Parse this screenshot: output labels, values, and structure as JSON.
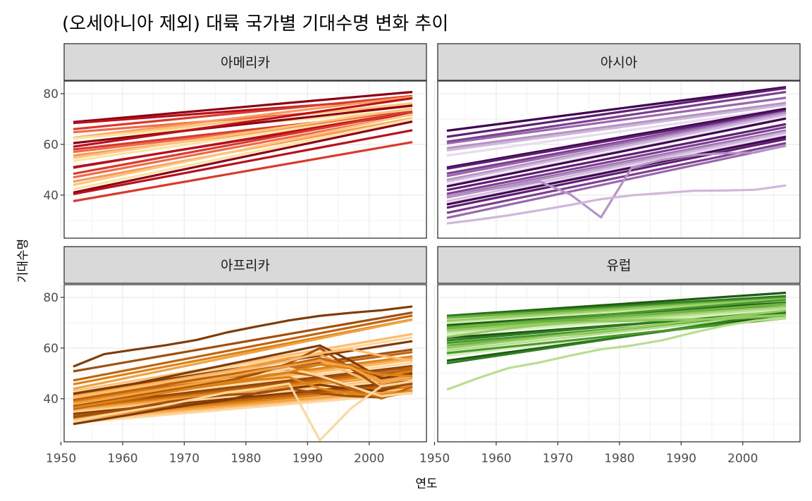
{
  "chart_data": {
    "type": "line",
    "title": "(오세아니아 제외) 대륙 국가별 기대수명 변화 추이",
    "xlabel": "연도",
    "ylabel": "기대수명",
    "xlim": [
      1952,
      2007
    ],
    "ylim": [
      23,
      85
    ],
    "x_ticks": [
      1950,
      1960,
      1970,
      1980,
      1990,
      2000
    ],
    "y_ticks": [
      40,
      60,
      80
    ],
    "x": [
      1952,
      1957,
      1962,
      1967,
      1972,
      1977,
      1982,
      1987,
      1992,
      1997,
      2002,
      2007
    ],
    "grid": true,
    "legend": "none",
    "facets": [
      {
        "name": "아메리카",
        "palette": [
          "#8b0012",
          "#b8111c",
          "#d93a2b",
          "#ef6a4a",
          "#f7995a",
          "#fdc47d",
          "#fee3a0"
        ],
        "series": [
          {
            "start": 68.8,
            "end": 80.7
          },
          {
            "start": 68.4,
            "end": 78.3
          },
          {
            "start": 66.0,
            "end": 79.1
          },
          {
            "start": 64.8,
            "end": 75.6
          },
          {
            "start": 62.6,
            "end": 78.8
          },
          {
            "start": 62.5,
            "end": 76.2
          },
          {
            "start": 62.3,
            "end": 73.6
          },
          {
            "start": 60.5,
            "end": 75.3
          },
          {
            "start": 59.1,
            "end": 78.2
          },
          {
            "start": 58.0,
            "end": 72.9
          },
          {
            "start": 57.0,
            "end": 72.5
          },
          {
            "start": 55.6,
            "end": 72.2
          },
          {
            "start": 54.7,
            "end": 74.2
          },
          {
            "start": 53.5,
            "end": 72.8
          },
          {
            "start": 51.0,
            "end": 72.4
          },
          {
            "start": 50.8,
            "end": 72.9
          },
          {
            "start": 48.4,
            "end": 72.9
          },
          {
            "start": 47.0,
            "end": 71.8
          },
          {
            "start": 45.3,
            "end": 70.3
          },
          {
            "start": 44.0,
            "end": 71.9
          },
          {
            "start": 42.3,
            "end": 70.0
          },
          {
            "start": 41.0,
            "end": 69.0
          },
          {
            "start": 40.4,
            "end": 65.6
          },
          {
            "start": 37.6,
            "end": 60.9
          }
        ]
      },
      {
        "name": "아시아",
        "palette": [
          "#3f0551",
          "#5e1f72",
          "#7c3f8f",
          "#9a67ad",
          "#b693c5",
          "#cfb8da",
          "#e6dcee"
        ],
        "series": [
          {
            "start": 65.4,
            "end": 82.6
          },
          {
            "start": 63.0,
            "end": 82.2
          },
          {
            "start": 61.0,
            "end": 80.7
          },
          {
            "start": 60.4,
            "end": 78.4
          },
          {
            "start": 58.5,
            "end": 76.4
          },
          {
            "start": 57.6,
            "end": 75.6
          },
          {
            "start": 55.6,
            "end": 74.2
          },
          {
            "start": 50.9,
            "end": 74.1
          },
          {
            "start": 50.4,
            "end": 73.4
          },
          {
            "start": 48.5,
            "end": 72.9
          },
          {
            "start": 47.5,
            "end": 72.8
          },
          {
            "start": 46.0,
            "end": 72.4
          },
          {
            "start": 45.3,
            "end": 71.7
          },
          {
            "start": 44.0,
            "end": 70.6
          },
          {
            "start": 43.4,
            "end": 70.2
          },
          {
            "start": 42.0,
            "end": 68.0
          },
          {
            "start": 40.5,
            "end": 66.8
          },
          {
            "start": 39.5,
            "end": 65.5
          },
          {
            "start": 39.0,
            "end": 65.0
          },
          {
            "start": 37.5,
            "end": 64.7
          },
          {
            "start": 37.0,
            "end": 63.8
          },
          {
            "start": 36.3,
            "end": 63.0
          },
          {
            "start": 35.0,
            "end": 62.1
          },
          {
            "start": 33.0,
            "end": 60.5
          },
          {
            "start": 31.0,
            "end": 59.5
          },
          {
            "start": 39.4,
            "end": 59.7,
            "values": [
              39.4,
              41.4,
              43.4,
              45.4,
              40.3,
              31.2,
              50.9,
              53.9,
              55.8,
              56.5,
              56.8,
              59.7
            ]
          },
          {
            "start": 28.8,
            "end": 43.8,
            "values": [
              28.8,
              30.3,
              32.0,
              34.0,
              36.1,
              38.4,
              39.9,
              40.8,
              41.7,
              41.8,
              42.1,
              43.8
            ]
          }
        ]
      },
      {
        "name": "아프리카",
        "palette": [
          "#7f3b08",
          "#a14f0b",
          "#c0650d",
          "#dd8315",
          "#f2a140",
          "#fdbd70",
          "#fed7a0"
        ],
        "series": [
          {
            "start": 52.7,
            "end": 76.4,
            "values": [
              52.7,
              57.6,
              59.4,
              61.1,
              63.2,
              66.2,
              68.6,
              70.9,
              72.7,
              73.9,
              74.9,
              76.4
            ]
          },
          {
            "start": 50.8,
            "end": 74.0
          },
          {
            "start": 47.2,
            "end": 72.8
          },
          {
            "start": 45.7,
            "end": 71.3
          },
          {
            "start": 43.9,
            "end": 71.2
          },
          {
            "start": 43.0,
            "end": 65.5
          },
          {
            "start": 42.5,
            "end": 64.2
          },
          {
            "start": 41.9,
            "end": 62.7
          },
          {
            "start": 41.0,
            "end": 59.4
          },
          {
            "start": 40.0,
            "end": 58.4
          },
          {
            "start": 39.5,
            "end": 56.7
          },
          {
            "start": 38.5,
            "end": 56.0
          },
          {
            "start": 38.2,
            "end": 55.3
          },
          {
            "start": 37.3,
            "end": 54.1
          },
          {
            "start": 37.0,
            "end": 52.9
          },
          {
            "start": 36.7,
            "end": 52.5
          },
          {
            "start": 36.3,
            "end": 51.5
          },
          {
            "start": 35.9,
            "end": 50.7
          },
          {
            "start": 35.5,
            "end": 49.6
          },
          {
            "start": 35.0,
            "end": 48.3
          },
          {
            "start": 34.5,
            "end": 47.8
          },
          {
            "start": 34.0,
            "end": 46.9
          },
          {
            "start": 33.5,
            "end": 46.2
          },
          {
            "start": 33.0,
            "end": 45.7
          },
          {
            "start": 32.5,
            "end": 44.7
          },
          {
            "start": 32.0,
            "end": 43.5
          },
          {
            "start": 31.3,
            "end": 42.6
          },
          {
            "start": 30.5,
            "end": 42.1
          },
          {
            "start": 30.0,
            "end": 46.4,
            "values": [
              30.0,
              32.0,
              34.0,
              36.1,
              37.9,
              39.5,
              42.3,
              44.0,
              45.5,
              43.8,
              43.1,
              46.4
            ]
          },
          {
            "start": 32.7,
            "end": 42.8,
            "values": [
              32.7,
              34.6,
              36.5,
              38.6,
              40.3,
              41.5,
              42.1,
              44.0,
              42.1,
              41.0,
              40.5,
              42.8
            ]
          },
          {
            "start": 36.0,
            "end": 44.7,
            "values": [
              36.0,
              38.0,
              40.0,
              42.5,
              44.4,
              46.0,
              48.5,
              50.5,
              48.8,
              43.8,
              40.1,
              44.7
            ]
          },
          {
            "start": 39.0,
            "end": 43.0,
            "values": [
              39.0,
              40.5,
              42.0,
              43.5,
              44.5,
              46.0,
              47.5,
              48.5,
              44.0,
              42.0,
              41.5,
              43.0
            ]
          },
          {
            "start": 41.0,
            "end": 49.3,
            "values": [
              41.0,
              43.0,
              45.0,
              47.0,
              49.0,
              51.0,
              53.5,
              56.0,
              57.5,
              52.0,
              47.0,
              49.3
            ]
          },
          {
            "start": 40.0,
            "end": 46.2,
            "values": [
              40.0,
              42.0,
              44.0,
              45.5,
              47.0,
              49.0,
              51.0,
              53.0,
              55.0,
              50.0,
              45.0,
              46.2
            ]
          },
          {
            "start": 38.0,
            "end": 42.4,
            "values": [
              38.0,
              39.5,
              41.0,
              43.0,
              45.0,
              47.0,
              49.5,
              52.0,
              49.0,
              45.0,
              41.0,
              42.4
            ]
          },
          {
            "start": 42.0,
            "end": 50.0,
            "values": [
              42.0,
              44.0,
              46.0,
              48.5,
              51.0,
              53.5,
              56.0,
              58.5,
              61.0,
              55.0,
              48.0,
              50.0
            ]
          },
          {
            "start": 37.0,
            "end": 46.0,
            "values": [
              37.0,
              39.0,
              41.0,
              43.0,
              45.0,
              47.0,
              50.0,
              54.0,
              60.0,
              52.0,
              44.0,
              46.0
            ]
          },
          {
            "start": 39.5,
            "end": 52.5,
            "values": [
              39.5,
              41.5,
              43.5,
              45.5,
              47.5,
              49.5,
              51.5,
              53.5,
              56.0,
              53.0,
              49.0,
              52.5
            ]
          },
          {
            "start": 36.5,
            "end": 49.0,
            "values": [
              36.5,
              38.5,
              40.5,
              42.5,
              44.5,
              46.5,
              48.5,
              50.5,
              53.5,
              52.0,
              49.5,
              49.0
            ]
          },
          {
            "start": 38.0,
            "end": 48.2,
            "values": [
              38.0,
              40.0,
              42.0,
              44.0,
              46.0,
              48.5,
              51.0,
              53.0,
              55.0,
              52.5,
              46.0,
              48.2
            ]
          },
          {
            "start": 40.5,
            "end": 55.0,
            "values": [
              40.5,
              42.5,
              44.5,
              46.5,
              48.5,
              50.5,
              52.5,
              55.0,
              58.0,
              59.5,
              57.0,
              55.0
            ]
          },
          {
            "start": 31.2,
            "end": 46.9,
            "values": [
              31.2,
              33.5,
              35.5,
              37.5,
              40.0,
              42.5,
              44.0,
              46.0,
              23.6,
              36.1,
              45.0,
              46.9
            ]
          }
        ]
      },
      {
        "name": "유럽",
        "palette": [
          "#1f5a12",
          "#2e7d1e",
          "#4a992e",
          "#6eb442",
          "#95cc63",
          "#b8df8e",
          "#d8efbd"
        ],
        "series": [
          {
            "start": 72.7,
            "end": 81.8
          },
          {
            "start": 72.5,
            "end": 80.5
          },
          {
            "start": 72.1,
            "end": 79.8
          },
          {
            "start": 71.9,
            "end": 79.4
          },
          {
            "start": 70.8,
            "end": 79.3
          },
          {
            "start": 70.0,
            "end": 78.7
          },
          {
            "start": 69.6,
            "end": 78.2
          },
          {
            "start": 69.0,
            "end": 77.9
          },
          {
            "start": 68.5,
            "end": 76.5
          },
          {
            "start": 68.0,
            "end": 79.0
          },
          {
            "start": 67.5,
            "end": 77.5
          },
          {
            "start": 66.9,
            "end": 76.4
          },
          {
            "start": 66.0,
            "end": 75.7
          },
          {
            "start": 65.5,
            "end": 74.9
          },
          {
            "start": 64.0,
            "end": 74.0
          },
          {
            "start": 63.0,
            "end": 74.5
          },
          {
            "start": 62.0,
            "end": 73.3
          },
          {
            "start": 61.0,
            "end": 72.8
          },
          {
            "start": 60.0,
            "end": 74.8
          },
          {
            "start": 59.0,
            "end": 73.5
          },
          {
            "start": 57.0,
            "end": 72.1
          },
          {
            "start": 55.0,
            "end": 73.2
          },
          {
            "start": 54.0,
            "end": 74.0
          },
          {
            "start": 58.0,
            "end": 71.8
          },
          {
            "start": 68.0,
            "end": 72.8,
            "values": [
              68.0,
              69.0,
              69.7,
              70.4,
              70.9,
              70.5,
              70.8,
              71.0,
              71.3,
              71.5,
              72.0,
              72.8
            ]
          },
          {
            "start": 64.4,
            "end": 73.0,
            "values": [
              64.4,
              66.0,
              67.7,
              69.0,
              70.0,
              70.5,
              71.0,
              71.2,
              71.3,
              71.5,
              72.5,
              73.0
            ]
          },
          {
            "start": 43.6,
            "end": 71.8,
            "values": [
              43.6,
              48.1,
              52.1,
              54.3,
              57.0,
              59.5,
              61.0,
              63.1,
              66.1,
              68.8,
              70.8,
              71.8
            ]
          }
        ]
      }
    ]
  }
}
